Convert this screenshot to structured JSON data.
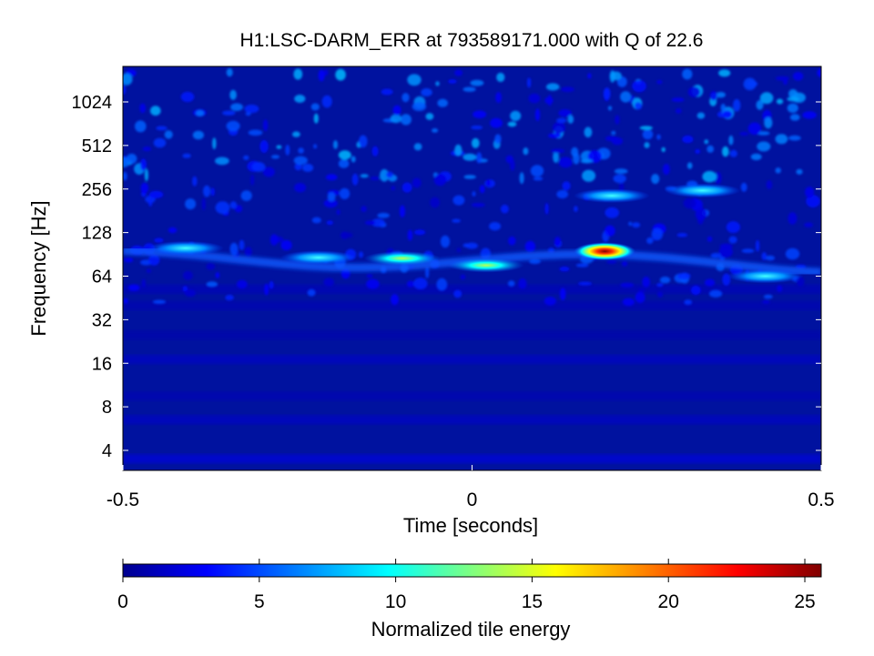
{
  "chart_data": {
    "type": "heatmap",
    "title": "H1:LSC-DARM_ERR at 793589171.000 with Q of 22.6",
    "xlabel": "Time [seconds]",
    "ylabel": "Frequency [Hz]",
    "xlim": [
      -0.5,
      0.5
    ],
    "ylim": [
      3,
      1600
    ],
    "yscale": "log2",
    "x_ticks": [
      "-0.5",
      "0",
      "0.5"
    ],
    "y_ticks": [
      "4",
      "8",
      "16",
      "32",
      "64",
      "128",
      "256",
      "512",
      "1024"
    ],
    "colormap": "jet",
    "colorbar": {
      "label": "Normalized tile energy",
      "range": [
        0,
        25.6
      ],
      "ticks": [
        "0",
        "5",
        "10",
        "15",
        "20",
        "25"
      ],
      "colors": [
        "#00008f",
        "#0000ff",
        "#00ffff",
        "#ffff00",
        "#ff0000",
        "#800000"
      ]
    },
    "background_bands": [
      {
        "freq": 3.5,
        "energy": 2.6
      },
      {
        "freq": 6.5,
        "energy": 1.8
      },
      {
        "freq": 9.5,
        "energy": 1.2
      },
      {
        "freq": 17,
        "energy": 1.8
      },
      {
        "freq": 25,
        "energy": 1.0
      },
      {
        "freq": 40,
        "energy": 1.2
      },
      {
        "freq": 52,
        "energy": 1.4
      }
    ],
    "hotspots": [
      {
        "t": 0.19,
        "freq": 95,
        "energy": 24
      },
      {
        "t": 0.02,
        "freq": 76,
        "energy": 12
      },
      {
        "t": -0.1,
        "freq": 85,
        "energy": 10
      },
      {
        "t": -0.22,
        "freq": 86,
        "energy": 9
      },
      {
        "t": -0.41,
        "freq": 100,
        "energy": 7
      },
      {
        "t": 0.42,
        "freq": 64,
        "energy": 7
      },
      {
        "t": 0.33,
        "freq": 250,
        "energy": 7
      },
      {
        "t": 0.2,
        "freq": 230,
        "energy": 6
      }
    ]
  }
}
